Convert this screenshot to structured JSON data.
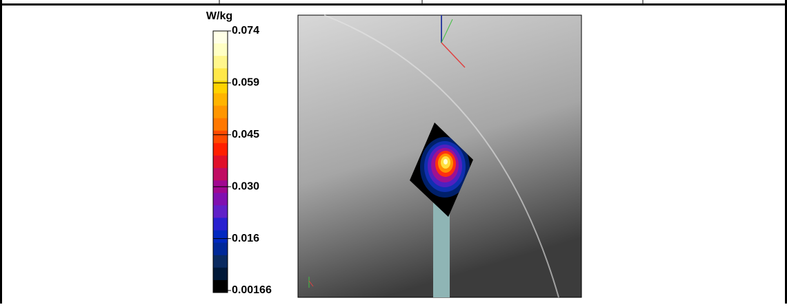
{
  "colorbar": {
    "unit": "W/kg",
    "labels": [
      "0.074",
      "0.059",
      "0.045",
      "0.030",
      "0.016",
      "0.00166"
    ]
  }
}
